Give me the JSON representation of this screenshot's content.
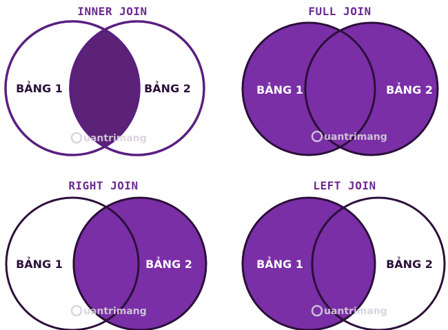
{
  "colors": {
    "fill": "#7a2fa6",
    "fill_dark": "#5b2277",
    "outline_purple": "#5a1f80",
    "outline_dark": "#2b0f3a",
    "title_text": "#6b2a8f",
    "label_dark": "#2b0f3a",
    "label_light": "#ffffff",
    "watermark": "#d8d0dc"
  },
  "watermark": {
    "text": "uantrimang",
    "icon": "circle-q-logo-icon"
  },
  "diagrams": [
    {
      "id": "inner-join",
      "title": "INNER JOIN",
      "left_label": "BẢNG 1",
      "right_label": "BẢNG 2",
      "left_filled": false,
      "right_filled": false,
      "intersection_filled": true
    },
    {
      "id": "full-join",
      "title": "FULL JOIN",
      "left_label": "BẢNG 1",
      "right_label": "BẢNG 2",
      "left_filled": true,
      "right_filled": true,
      "intersection_filled": true
    },
    {
      "id": "right-join",
      "title": "RIGHT JOIN",
      "left_label": "BẢNG 1",
      "right_label": "BẢNG 2",
      "left_filled": false,
      "right_filled": true,
      "intersection_filled": true
    },
    {
      "id": "left-join",
      "title": "LEFT JOIN",
      "left_label": "BẢNG 1",
      "right_label": "BẢNG 2",
      "left_filled": true,
      "right_filled": false,
      "intersection_filled": true
    }
  ]
}
